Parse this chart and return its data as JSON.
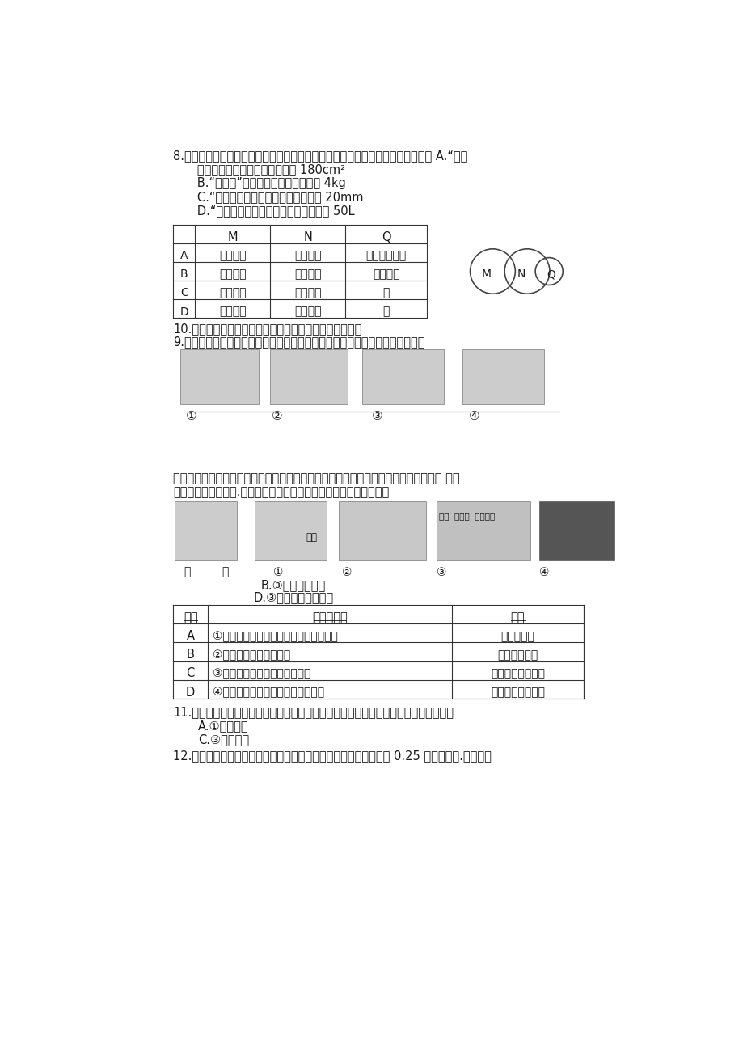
{
  "bg_color": "#ffffff",
  "text_color": "#1a1a1a",
  "page_width": 9.2,
  "page_height": 13.01,
  "q8_line1": "8.某同学对预防新冠肺炎措施中使用的一些物品进行了估测，其中最符合事实的是 A.“戴口",
  "q8_line2": "   罩，一只长方形口罩的面积约为 180cm²",
  "q8_line3": "   B.“测体温”：一只测温枪的质量约为 4kg",
  "q8_line4": "   C.“要消毒，一张消毒湿巾的厚度约为 20mm",
  "q8_line5": "   D.“勤洗手，一瓶家用洗手液的体积约为 50L",
  "t1_headers": [
    "",
    "M",
    "N",
    "Q"
  ],
  "t1_rows": [
    [
      "A",
      "物理变化",
      "化学变化",
      "电灯通电发光"
    ],
    [
      "B",
      "抱子植物",
      "种子植物",
      "被子植物"
    ],
    [
      "C",
      "脊椎动物",
      "爬行动物",
      "蛇"
    ],
    [
      "D",
      "营养器官",
      "生殖器官",
      "根"
    ]
  ],
  "q10_text": "10.如图，下列各项实验或事实能作为相应结论的证据的是",
  "q9_text": "9.概念之间常存在交叉、并列或包含关系，下列选项中的概念符合图中关系的是",
  "soap_line1": "上便会出现一层肥皂膚，如图甲。用烧热的针刺破线的一侧的肥皂膚，另一侧的肥皂膚 会把",
  "soap_line2": "细线拉过去，如图乙.下列选项中的实验，其原理与上述实验一致的是",
  "text_B": "B.③酒精与水混合",
  "text_D": "D.③红墨水分散到水中",
  "t2_headers": [
    "选项",
    "实验或事实",
    "结论"
  ],
  "t2_rows": [
    [
      "A",
      "①铅笔沿篹球表面向右移动时笔尖先消失",
      "地球是球体"
    ],
    [
      "B",
      "②高山上的海洋生物化石",
      "地壳是变动的"
    ],
    [
      "C",
      "③两本书向中间挠压时中间隆起",
      "板块碰撞形成山脉"
    ],
    [
      "D",
      "④切开的熟鸡蛋有蛋壳、蛋白和蛋黄",
      "地球内部是分层的"
    ]
  ],
  "q11_line1": "11.将一根细线松松地系在一个铁丝框架的两边上，把框架浸到肥皂液里再取出来，框架",
  "q11_A": "A.①铅柱黏合",
  "q11_C": "C.③气体扩散",
  "q12_line1": "12.某工厂要制造一种特殊用途的钙铝罐，在钙罐内表面要压贴一层 0.25 毫米的铝片.技术人员"
}
